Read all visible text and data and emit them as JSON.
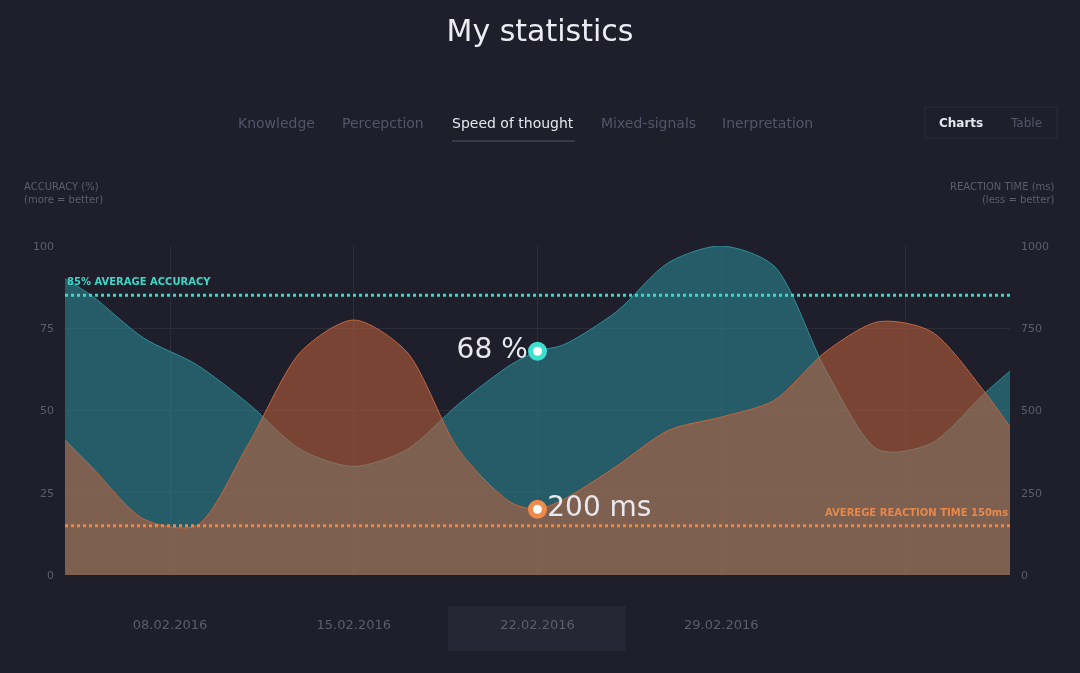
{
  "chart_data": {
    "type": "area",
    "title": "My statistics",
    "ylabel": "ACCURACY (%)\n(more = better)",
    "y2label": "REACTION TIME (ms)\n(less = better)",
    "x": [
      "2016-02-04",
      "2016-02-05",
      "2016-02-07",
      "2016-02-09",
      "2016-02-11",
      "2016-02-13",
      "2016-02-15",
      "2016-02-17",
      "2016-02-19",
      "2016-02-21",
      "2016-02-22",
      "2016-02-23",
      "2016-02-25",
      "2016-02-27",
      "2016-02-29",
      "2016-03-02",
      "2016-03-04",
      "2016-03-06",
      "2016-03-08",
      "2016-03-10",
      "2016-03-11"
    ],
    "series": [
      {
        "color": "#2b8f9a",
        "values": [
          90,
          85,
          72,
          64,
          52,
          38,
          33,
          38,
          52,
          64,
          68,
          70,
          80,
          95,
          100,
          94,
          62,
          38,
          40,
          55,
          62
        ]
      },
      {
        "color": "#c4653c",
        "axis": "y2",
        "values": [
          410,
          330,
          170,
          150,
          400,
          680,
          775,
          680,
          380,
          220,
          200,
          230,
          330,
          440,
          480,
          530,
          680,
          770,
          740,
          560,
          450
        ]
      },
      {
        "type": "scatter",
        "marker": "circle",
        "x": [
          "2016-02-22"
        ],
        "values": [
          68
        ],
        "color": "#3de0d0",
        "value_labels": [
          "68 %"
        ]
      },
      {
        "type": "scatter",
        "marker": "circle",
        "axis": "y2",
        "x": [
          "2016-02-22"
        ],
        "values": [
          200
        ],
        "color": "#f08a4a",
        "value_labels": [
          "200 ms"
        ]
      }
    ],
    "xlim": [
      "2016-02-04",
      "2016-03-11"
    ],
    "xticks": [
      {
        "value": "2016-02-08",
        "label": "08.02.2016"
      },
      {
        "value": "2016-02-15",
        "label": "15.02.2016"
      },
      {
        "value": "2016-02-22",
        "label": "22.02.2016"
      },
      {
        "value": "2016-02-29",
        "label": "29.02.2016"
      },
      {
        "value": "2016-03-07",
        "label": null
      }
    ],
    "ylim": [
      0,
      100
    ],
    "yticks": [
      0,
      25,
      50,
      75,
      100
    ],
    "y2lim": [
      0,
      1000
    ],
    "y2ticks": [
      0,
      250,
      500,
      750,
      1000
    ],
    "grid": true,
    "ref_lines": [
      {
        "axis": "y",
        "value": 85,
        "label": "85% AVERAGE ACCURACY",
        "color": "#3fd6c8",
        "line_style": "dotted"
      },
      {
        "axis": "y2",
        "value": 150,
        "label": "AVEREGE REACTION TIME 150ms",
        "color": "#e8884a",
        "line_style": "dotted"
      }
    ],
    "annotations": [
      "Knowledge",
      "Percepction",
      "Speed of thought",
      "Mixed-signals",
      "Inerpretation",
      "Charts",
      "Table"
    ]
  }
}
